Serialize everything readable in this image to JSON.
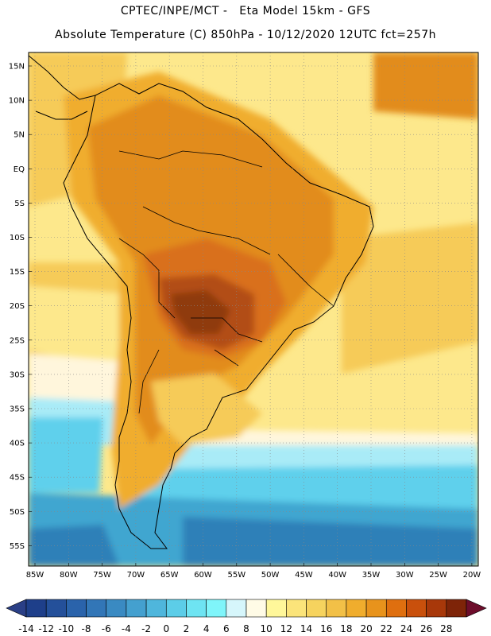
{
  "header": {
    "line1": "CPTEC/INPE/MCT -   Eta Model 15km - GFS",
    "line2": "Absolute Temperature (C) 850hPa - 10/12/2020 12UTC fct=257h"
  },
  "axes": {
    "lat_labels": [
      "15N",
      "10N",
      "5N",
      "EQ",
      "5S",
      "10S",
      "15S",
      "20S",
      "25S",
      "30S",
      "35S",
      "40S",
      "45S",
      "50S",
      "55S"
    ],
    "lon_labels": [
      "85W",
      "80W",
      "75W",
      "70W",
      "65W",
      "60W",
      "55W",
      "50W",
      "45W",
      "40W",
      "35W",
      "30W",
      "25W",
      "20W"
    ]
  },
  "colorbar": {
    "labels": [
      "-14",
      "-12",
      "-10",
      "-8",
      "-6",
      "-4",
      "-2",
      "0",
      "2",
      "4",
      "6",
      "8",
      "10",
      "12",
      "14",
      "16",
      "18",
      "20",
      "22",
      "24",
      "26",
      "28"
    ],
    "colors": [
      "#1e3f8a",
      "#24509a",
      "#2a63ab",
      "#3276b7",
      "#3a8ac2",
      "#44a0cf",
      "#4fb6dc",
      "#5ccde8",
      "#6ee4f2",
      "#7ff5fa",
      "#d6f6fb",
      "#fffbe6",
      "#fff79a",
      "#fbe47a",
      "#f6d35e",
      "#f2c047",
      "#f0ad2d",
      "#e8931c",
      "#df6f0f",
      "#c9500c",
      "#a8380a",
      "#7e2408"
    ],
    "under_color": "#2a3f86",
    "over_color": "#6d0d2b"
  },
  "map_colors": {
    "deep_blue": "#2f80b8",
    "blue": "#3fa6d0",
    "cyan": "#5fd0ec",
    "light_cyan": "#a9ebf7",
    "pale": "#fff6dc",
    "yellow": "#fde88c",
    "light_orange": "#f6cb58",
    "orange": "#f0ad2d",
    "dark_orange": "#e28c1f",
    "red_orange": "#d9701a",
    "brown": "#b24d12",
    "dark_brown": "#8f3a0e"
  }
}
